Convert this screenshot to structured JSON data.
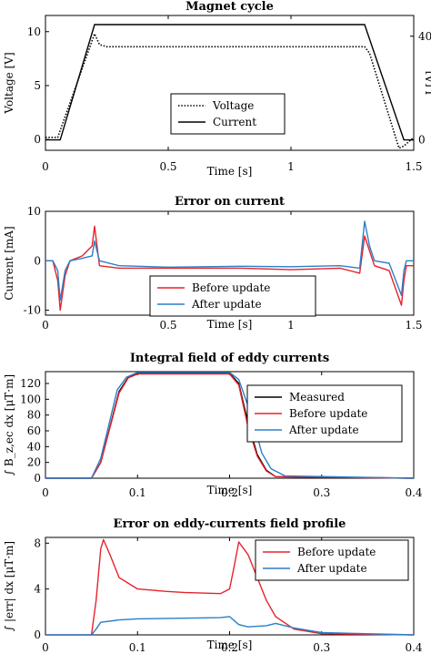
{
  "colors": {
    "red": "#e8222b",
    "blue": "#2a7fc8",
    "black": "#000000"
  },
  "chart_data": [
    {
      "type": "line",
      "title": "Magnet cycle",
      "xlabel": "Time [s]",
      "ylabel": "Voltage [V]",
      "ylabel_right": "I [A]",
      "xlim": [
        0,
        1.5
      ],
      "ylim": [
        -1,
        11.5
      ],
      "ylim_right": [
        -4,
        48
      ],
      "xticks": [
        "0",
        "0.5",
        "1",
        "1.5"
      ],
      "yticks": [
        "0",
        "5",
        "10"
      ],
      "yticks_right": [
        "0",
        "40"
      ],
      "legend_position": "center",
      "series": [
        {
          "name": "Voltage",
          "style": "dotted",
          "axis": "left",
          "x": [
            0,
            0.05,
            0.2,
            0.22,
            0.25,
            1.3,
            1.32,
            1.44,
            1.46,
            1.5
          ],
          "y": [
            0.2,
            0.2,
            9.8,
            8.8,
            8.6,
            8.6,
            8.0,
            -0.8,
            -0.6,
            0.2
          ]
        },
        {
          "name": "Current",
          "style": "solid",
          "axis": "right",
          "x": [
            0,
            0.06,
            0.2,
            1.3,
            1.46,
            1.5
          ],
          "y": [
            0,
            0,
            44.5,
            44.5,
            0,
            0
          ]
        }
      ]
    },
    {
      "type": "line",
      "title": "Error on current",
      "xlabel": "Time [s]",
      "ylabel": "Current [mA]",
      "xlim": [
        0,
        1.5
      ],
      "ylim": [
        -11,
        10
      ],
      "xticks": [
        "0",
        "0.5",
        "1",
        "1.5"
      ],
      "yticks": [
        "-10",
        "0",
        "10"
      ],
      "legend_position": "bottom-center",
      "series": [
        {
          "name": "Before update",
          "color": "red",
          "x": [
            0,
            0.03,
            0.05,
            0.06,
            0.08,
            0.1,
            0.15,
            0.19,
            0.2,
            0.22,
            0.3,
            0.5,
            0.8,
            1.0,
            1.2,
            1.28,
            1.3,
            1.32,
            1.34,
            1.4,
            1.45,
            1.46,
            1.47,
            1.5
          ],
          "y": [
            0,
            0,
            -4,
            -10,
            -3,
            0,
            1,
            3,
            7,
            -1,
            -1.5,
            -1.5,
            -1.5,
            -1.8,
            -1.5,
            -2.5,
            5,
            2,
            -1,
            -2,
            -9,
            -4,
            -1,
            -1
          ]
        },
        {
          "name": "After update",
          "color": "blue",
          "x": [
            0,
            0.03,
            0.05,
            0.06,
            0.08,
            0.1,
            0.15,
            0.19,
            0.2,
            0.22,
            0.3,
            0.5,
            0.8,
            1.0,
            1.2,
            1.28,
            1.3,
            1.32,
            1.34,
            1.4,
            1.45,
            1.46,
            1.47,
            1.5
          ],
          "y": [
            0,
            0,
            -2,
            -8,
            -2,
            0,
            0.5,
            1,
            4,
            0,
            -1,
            -1.3,
            -1.1,
            -1.2,
            -1,
            -1.5,
            8,
            3,
            0,
            -0.5,
            -7,
            -2,
            0,
            0
          ]
        }
      ]
    },
    {
      "type": "line",
      "title": "Integral field of eddy currents",
      "xlabel": "Time [s]",
      "ylabel": "∫ B_z,ec dx [μT·m]",
      "xlim": [
        0,
        0.4
      ],
      "ylim": [
        0,
        135
      ],
      "xticks": [
        "0",
        "0.1",
        "0.2",
        "0.3",
        "0.4"
      ],
      "yticks": [
        "0",
        "20",
        "40",
        "60",
        "80",
        "100",
        "120"
      ],
      "legend_position": "top-right",
      "series": [
        {
          "name": "Measured",
          "color": "black",
          "x": [
            0,
            0.05,
            0.06,
            0.08,
            0.09,
            0.1,
            0.2,
            0.21,
            0.22,
            0.23,
            0.24,
            0.25,
            0.4
          ],
          "y": [
            0,
            0,
            20,
            110,
            128,
            133,
            133,
            120,
            70,
            30,
            10,
            2,
            0
          ]
        },
        {
          "name": "Before update",
          "color": "red",
          "x": [
            0,
            0.05,
            0.06,
            0.08,
            0.09,
            0.1,
            0.2,
            0.21,
            0.22,
            0.23,
            0.24,
            0.25,
            0.4
          ],
          "y": [
            0,
            0,
            20,
            108,
            127,
            132,
            132,
            118,
            65,
            28,
            9,
            2,
            0
          ]
        },
        {
          "name": "After update",
          "color": "blue",
          "x": [
            0,
            0.05,
            0.06,
            0.078,
            0.088,
            0.1,
            0.2,
            0.21,
            0.225,
            0.235,
            0.245,
            0.26,
            0.4
          ],
          "y": [
            0,
            0,
            25,
            112,
            128,
            134,
            134,
            125,
            75,
            32,
            12,
            3,
            0
          ]
        }
      ]
    },
    {
      "type": "line",
      "title": "Error on eddy-currents field profile",
      "xlabel": "Time [s]",
      "ylabel": "∫ |err| dx [μT·m]",
      "xlim": [
        0,
        0.4
      ],
      "ylim": [
        0,
        8.5
      ],
      "xticks": [
        "0",
        "0.1",
        "0.2",
        "0.3",
        "0.4"
      ],
      "yticks": [
        "0",
        "4",
        "8"
      ],
      "legend_position": "top-right",
      "series": [
        {
          "name": "Before update",
          "color": "red",
          "x": [
            0,
            0.05,
            0.055,
            0.06,
            0.063,
            0.07,
            0.08,
            0.1,
            0.13,
            0.15,
            0.19,
            0.2,
            0.205,
            0.21,
            0.22,
            0.24,
            0.25,
            0.27,
            0.3,
            0.4
          ],
          "y": [
            0,
            0,
            3,
            7.5,
            8.3,
            7,
            5,
            4,
            3.8,
            3.7,
            3.6,
            4,
            6,
            8.1,
            7,
            3,
            1.6,
            0.5,
            0.1,
            0
          ]
        },
        {
          "name": "After update",
          "color": "blue",
          "x": [
            0,
            0.05,
            0.055,
            0.06,
            0.08,
            0.1,
            0.15,
            0.19,
            0.2,
            0.21,
            0.22,
            0.24,
            0.25,
            0.27,
            0.3,
            0.4
          ],
          "y": [
            0,
            0,
            0.5,
            1.1,
            1.3,
            1.4,
            1.45,
            1.5,
            1.6,
            0.9,
            0.7,
            0.8,
            1.0,
            0.6,
            0.2,
            0
          ]
        }
      ]
    }
  ]
}
